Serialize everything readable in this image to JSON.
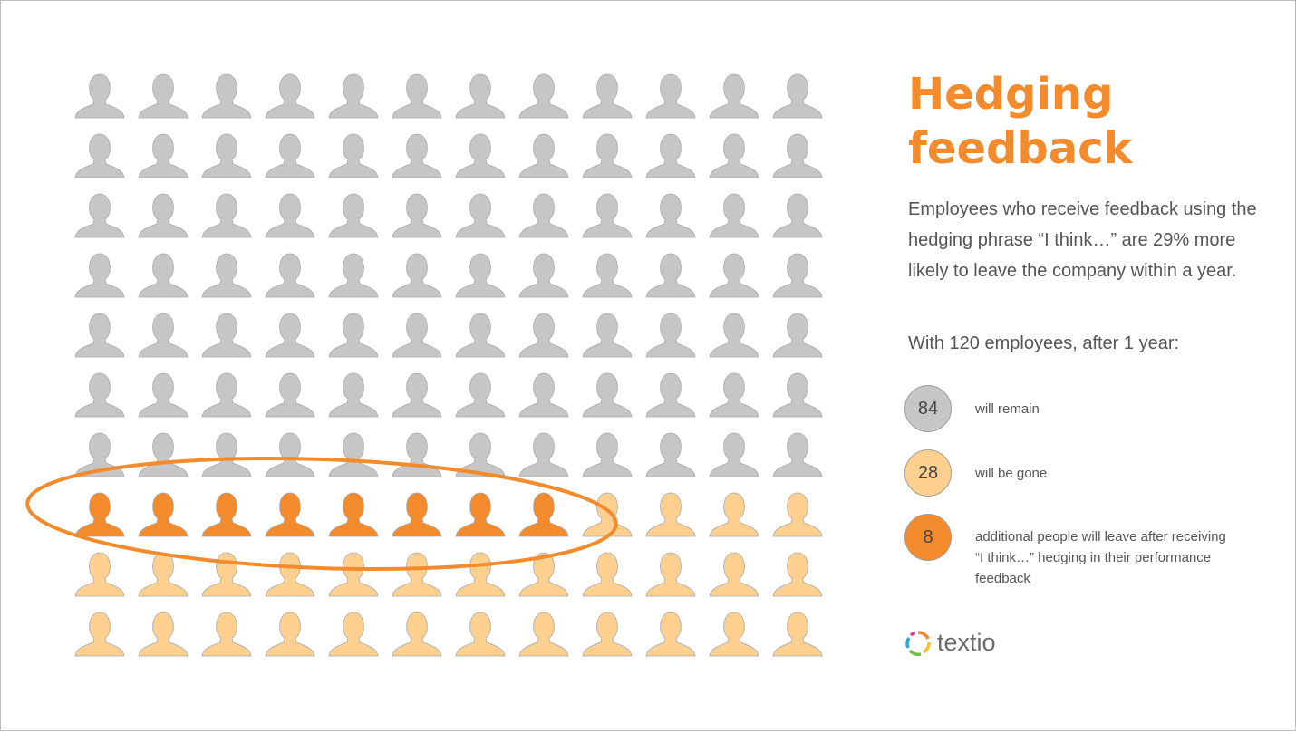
{
  "title_line1": "Hedging",
  "title_line2": "feedback",
  "description": "Employees who receive feedback using the hedging phrase “I think…” are 29% more likely to leave the company within a year.",
  "subtitle": "With 120 employees, after 1 year:",
  "legend": [
    {
      "count": "84",
      "label": "will remain",
      "color": "#c6c6c6"
    },
    {
      "count": "28",
      "label": "will be gone",
      "color": "#fdd08f"
    },
    {
      "count": "8",
      "label": "additional people will leave after receiving “I think…” hedging in their performance feedback",
      "color": "#f38b2d"
    }
  ],
  "logo_text": "textio",
  "chart_data": {
    "type": "pictogram",
    "total": 120,
    "columns": 12,
    "rows": 10,
    "groups": [
      {
        "name": "will remain",
        "value": 84,
        "color": "#c6c6c6"
      },
      {
        "name": "additional leave (hedging)",
        "value": 8,
        "color": "#f38b2d"
      },
      {
        "name": "will be gone",
        "value": 28,
        "color": "#fdd08f"
      }
    ],
    "highlight": "ellipse around the 8 additional leavers",
    "highlight_color": "#f38b2d"
  }
}
